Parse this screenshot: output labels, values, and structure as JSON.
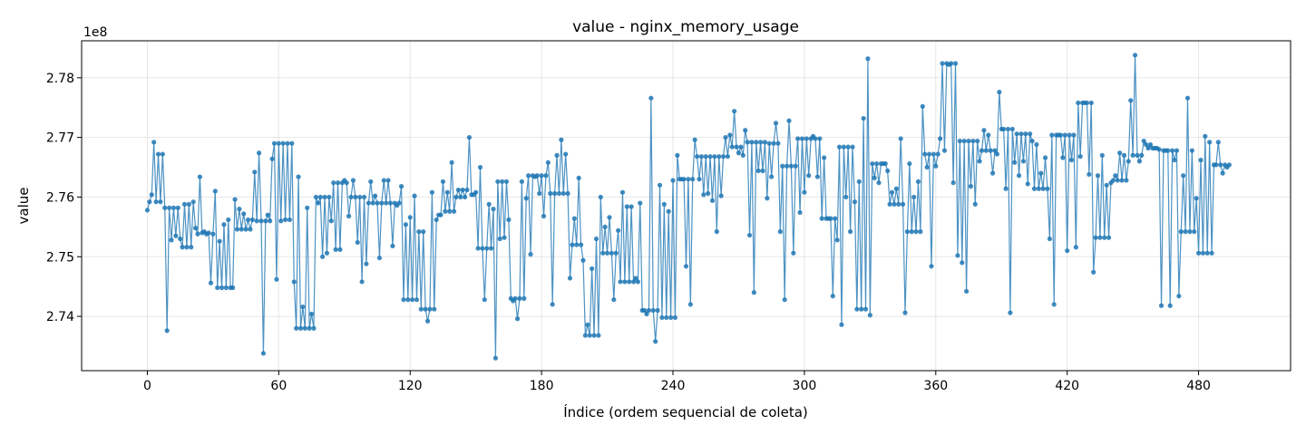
{
  "chart_data": {
    "type": "line",
    "title": "value - nginx_memory_usage",
    "xlabel": "Índice (ordem sequencial de coleta)",
    "ylabel": "value",
    "y_offset_text": "1e8",
    "xlim": [
      -30,
      522
    ],
    "ylim": [
      2.7309,
      2.7862
    ],
    "x_ticks": [
      0,
      60,
      120,
      180,
      240,
      300,
      360,
      420,
      480
    ],
    "y_ticks": [
      2.74,
      2.75,
      2.76,
      2.77,
      2.78
    ],
    "y_tick_labels": [
      "2.74",
      "2.75",
      "2.76",
      "2.77",
      "2.78"
    ],
    "grid": true,
    "line_color": "#1f77b4",
    "x_start": 0,
    "series": [
      {
        "values": [
          2.7578,
          2.7592,
          2.7604,
          2.7692,
          2.7592,
          2.7672,
          2.7592,
          2.7672,
          2.7582,
          2.7376,
          2.7582,
          2.7528,
          2.7582,
          2.7535,
          2.7582,
          2.753,
          2.7516,
          2.7588,
          2.7516,
          2.7588,
          2.7516,
          2.7592,
          2.7548,
          2.7538,
          2.7634,
          2.754,
          2.7542,
          2.7538,
          2.754,
          2.7456,
          2.7538,
          2.761,
          2.7448,
          2.7526,
          2.7448,
          2.7554,
          2.7448,
          2.7562,
          2.7448,
          2.7448,
          2.7596,
          2.7546,
          2.758,
          2.7546,
          2.7572,
          2.7546,
          2.7562,
          2.7546,
          2.7562,
          2.7642,
          2.756,
          2.7674,
          2.756,
          2.7338,
          2.756,
          2.757,
          2.756,
          2.7664,
          2.769,
          2.7462,
          2.769,
          2.756,
          2.769,
          2.7562,
          2.769,
          2.7562,
          2.769,
          2.7458,
          2.738,
          2.7634,
          2.738,
          2.7416,
          2.738,
          2.7582,
          2.738,
          2.7404,
          2.738,
          2.76,
          2.759,
          2.76,
          2.75,
          2.76,
          2.7506,
          2.76,
          2.756,
          2.7624,
          2.7512,
          2.7624,
          2.7512,
          2.7624,
          2.7628,
          2.7624,
          2.7568,
          2.76,
          2.7628,
          2.76,
          2.7524,
          2.76,
          2.7458,
          2.76,
          2.7488,
          2.759,
          2.7626,
          2.759,
          2.7602,
          2.759,
          2.7498,
          2.759,
          2.7628,
          2.759,
          2.7628,
          2.759,
          2.7518,
          2.759,
          2.7586,
          2.759,
          2.7618,
          2.7428,
          2.7554,
          2.7428,
          2.7566,
          2.7428,
          2.7602,
          2.7428,
          2.7542,
          2.7412,
          2.7542,
          2.7412,
          2.7392,
          2.7412,
          2.7608,
          2.7412,
          2.7562,
          2.757,
          2.757,
          2.7626,
          2.7576,
          2.7608,
          2.7576,
          2.7658,
          2.7576,
          2.76,
          2.7612,
          2.76,
          2.7612,
          2.76,
          2.7612,
          2.77,
          2.7604,
          2.7604,
          2.7608,
          2.7514,
          2.765,
          2.7514,
          2.7428,
          2.7514,
          2.7588,
          2.7514,
          2.758,
          2.733,
          2.7626,
          2.753,
          2.7626,
          2.7532,
          2.7626,
          2.7562,
          2.743,
          2.7426,
          2.743,
          2.7396,
          2.743,
          2.7626,
          2.743,
          2.7598,
          2.7636,
          2.7504,
          2.7636,
          2.7634,
          2.7636,
          2.7606,
          2.7636,
          2.7568,
          2.7636,
          2.7658,
          2.7606,
          2.742,
          2.7606,
          2.767,
          2.7606,
          2.7696,
          2.7606,
          2.7672,
          2.7606,
          2.7464,
          2.752,
          2.7564,
          2.752,
          2.7632,
          2.752,
          2.7494,
          2.7368,
          2.7386,
          2.7368,
          2.748,
          2.7368,
          2.753,
          2.7368,
          2.76,
          2.7506,
          2.755,
          2.7506,
          2.7566,
          2.7506,
          2.7428,
          2.7506,
          2.7544,
          2.7458,
          2.7608,
          2.7458,
          2.7584,
          2.7458,
          2.7584,
          2.7458,
          2.7464,
          2.7458,
          2.759,
          2.741,
          2.741,
          2.7404,
          2.741,
          2.7766,
          2.741,
          2.7358,
          2.741,
          2.762,
          2.7398,
          2.7588,
          2.7398,
          2.7576,
          2.7398,
          2.7628,
          2.7398,
          2.767,
          2.763,
          2.763,
          2.763,
          2.7484,
          2.763,
          2.742,
          2.763,
          2.7696,
          2.7668,
          2.763,
          2.7668,
          2.7604,
          2.7668,
          2.7606,
          2.7668,
          2.7594,
          2.7668,
          2.7542,
          2.7668,
          2.7602,
          2.7668,
          2.77,
          2.7668,
          2.7704,
          2.7684,
          2.7744,
          2.7684,
          2.7674,
          2.7684,
          2.767,
          2.7712,
          2.7692,
          2.7536,
          2.7692,
          2.744,
          2.7692,
          2.7644,
          2.7692,
          2.7644,
          2.7692,
          2.7598,
          2.769,
          2.7634,
          2.769,
          2.7724,
          2.769,
          2.7542,
          2.7652,
          2.7428,
          2.7652,
          2.7728,
          2.7652,
          2.7506,
          2.7652,
          2.7698,
          2.7574,
          2.7698,
          2.7608,
          2.7698,
          2.7636,
          2.7698,
          2.7702,
          2.7698,
          2.7634,
          2.7698,
          2.7564,
          2.7666,
          2.7564,
          2.7564,
          2.7564,
          2.7434,
          2.7564,
          2.7528,
          2.7684,
          2.7386,
          2.7684,
          2.76,
          2.7684,
          2.7542,
          2.7684,
          2.7592,
          2.7412,
          2.7626,
          2.7412,
          2.7732,
          2.7412,
          2.7832,
          2.7402,
          2.7656,
          2.7632,
          2.7656,
          2.7624,
          2.7656,
          2.7656,
          2.7656,
          2.7644,
          2.7588,
          2.7608,
          2.7588,
          2.7614,
          2.7588,
          2.7698,
          2.7588,
          2.7406,
          2.7542,
          2.7656,
          2.7542,
          2.76,
          2.7542,
          2.7626,
          2.7542,
          2.7752,
          2.7672,
          2.765,
          2.7672,
          2.7484,
          2.7672,
          2.7652,
          2.7672,
          2.7698,
          2.7824,
          2.7678,
          2.7824,
          2.7822,
          2.7824,
          2.7624,
          2.7824,
          2.7502,
          2.7694,
          2.749,
          2.7694,
          2.7442,
          2.7694,
          2.7618,
          2.7694,
          2.7588,
          2.7694,
          2.766,
          2.7678,
          2.7712,
          2.7678,
          2.7704,
          2.7678,
          2.764,
          2.7678,
          2.7672,
          2.7776,
          2.7714,
          2.7714,
          2.7614,
          2.7714,
          2.7406,
          2.7714,
          2.7658,
          2.7706,
          2.7636,
          2.7706,
          2.766,
          2.7706,
          2.7622,
          2.7706,
          2.7694,
          2.7614,
          2.7688,
          2.7614,
          2.764,
          2.7614,
          2.7666,
          2.7614,
          2.753,
          2.7704,
          2.742,
          2.7704,
          2.7704,
          2.7704,
          2.7666,
          2.7704,
          2.751,
          2.7704,
          2.7662,
          2.7704,
          2.7516,
          2.7758,
          2.7668,
          2.7758,
          2.7758,
          2.7758,
          2.7638,
          2.7758,
          2.7474,
          2.7532,
          2.7636,
          2.7532,
          2.767,
          2.7532,
          2.762,
          2.7532,
          2.7624,
          2.7628,
          2.7636,
          2.7628,
          2.7674,
          2.7628,
          2.767,
          2.7628,
          2.766,
          2.7762,
          2.767,
          2.7838,
          2.767,
          2.766,
          2.767,
          2.7694,
          2.7688,
          2.7682,
          2.7688,
          2.7682,
          2.7682,
          2.7682,
          2.768,
          2.7418,
          2.7678,
          2.7678,
          2.7678,
          2.7418,
          2.7678,
          2.7662,
          2.7678,
          2.7434,
          2.7542,
          2.7636,
          2.7542,
          2.7766,
          2.7542,
          2.7678,
          2.7542,
          2.7598,
          2.7506,
          2.7662,
          2.7506,
          2.7702,
          2.7506,
          2.7692,
          2.7506,
          2.7654,
          2.7654,
          2.7692,
          2.7654,
          2.764,
          2.7654,
          2.765,
          2.7654
        ]
      }
    ]
  }
}
